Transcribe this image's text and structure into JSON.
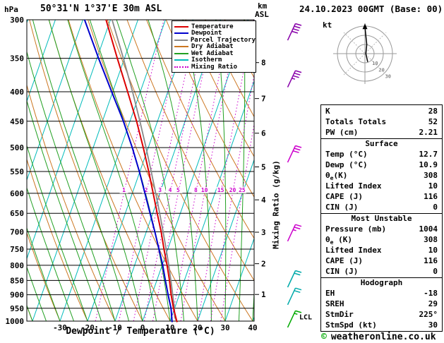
{
  "meta": {
    "hpa_label": "hPa",
    "station_title": "50°31'N 1°37'E 30m ASL",
    "km_label": "km",
    "asl_label": "ASL",
    "datetime": "24.10.2023 00GMT (Base: 00)",
    "copyright_symbol": "©",
    "copyright_text": "weatheronline.co.uk"
  },
  "chart_data": {
    "type": "skewt-log-p-sounding",
    "title": "50°31'N 1°37'E 30m ASL",
    "datetime": "24.10.2023 00GMT (Base: 00)",
    "xlabel": "Dewpoint / Temperature (°C)",
    "pressure_unit": "hPa",
    "x_ticks": [
      -30,
      -20,
      -10,
      0,
      10,
      20,
      30,
      40
    ],
    "pressure_ticks": [
      300,
      350,
      400,
      450,
      500,
      550,
      600,
      650,
      700,
      750,
      800,
      850,
      900,
      950,
      1000
    ],
    "km_axis": {
      "unit": "km ASL",
      "ticks": [
        1,
        2,
        3,
        4,
        5,
        6,
        7,
        8
      ],
      "tick_pressures": [
        899,
        795,
        701,
        616,
        540,
        472,
        411,
        356
      ],
      "lcl_label": "LCL",
      "lcl_pressure": 985
    },
    "mixing_ratio_axis_label": "Mixing Ratio (g/kg)",
    "mixing_ratio_lines": [
      1,
      2,
      3,
      4,
      5,
      8,
      10,
      15,
      20,
      25
    ],
    "grid": {
      "isotherms": {
        "min": -90,
        "max": 40,
        "step": 10
      },
      "dry_adiabats": {
        "min": -40,
        "max": 140,
        "step": 10
      },
      "wet_adiabats": {
        "min": -40,
        "max": 40,
        "step": 5
      }
    },
    "colors": {
      "temperature": "#dd0000",
      "dewpoint": "#0000cc",
      "parcel": "#888888",
      "dry_adiabat": "#cc7722",
      "wet_adiabat": "#22a022",
      "isotherm": "#00bbbb",
      "mixing_ratio": "#cc00cc",
      "grid": "#000000"
    },
    "legend": [
      {
        "label": "Temperature",
        "color": "#dd0000",
        "style": "solid"
      },
      {
        "label": "Dewpoint",
        "color": "#0000cc",
        "style": "solid"
      },
      {
        "label": "Parcel Trajectory",
        "color": "#888888",
        "style": "solid"
      },
      {
        "label": "Dry Adiabat",
        "color": "#cc7722",
        "style": "solid"
      },
      {
        "label": "Wet Adiabat",
        "color": "#22a022",
        "style": "solid"
      },
      {
        "label": "Isotherm",
        "color": "#00bbbb",
        "style": "solid"
      },
      {
        "label": "Mixing Ratio",
        "color": "#cc00cc",
        "style": "dotted"
      }
    ],
    "profiles": {
      "temperature": [
        [
          1004,
          12.7
        ],
        [
          1000,
          12.4
        ],
        [
          950,
          9.6
        ],
        [
          900,
          7.0
        ],
        [
          850,
          4.6
        ],
        [
          800,
          1.8
        ],
        [
          750,
          -1.4
        ],
        [
          700,
          -4.6
        ],
        [
          650,
          -8.4
        ],
        [
          600,
          -12.4
        ],
        [
          550,
          -16.8
        ],
        [
          500,
          -21.8
        ],
        [
          450,
          -27.6
        ],
        [
          400,
          -34.6
        ],
        [
          350,
          -42.6
        ],
        [
          300,
          -51.6
        ]
      ],
      "dewpoint": [
        [
          1004,
          10.9
        ],
        [
          1000,
          10.7
        ],
        [
          950,
          8.7
        ],
        [
          900,
          5.9
        ],
        [
          850,
          3.1
        ],
        [
          800,
          0.2
        ],
        [
          750,
          -3.2
        ],
        [
          700,
          -6.9
        ],
        [
          650,
          -11.0
        ],
        [
          600,
          -15.4
        ],
        [
          550,
          -20.2
        ],
        [
          500,
          -25.8
        ],
        [
          450,
          -32.4
        ],
        [
          400,
          -40.4
        ],
        [
          350,
          -49.4
        ],
        [
          300,
          -59.4
        ]
      ],
      "parcel": [
        [
          1004,
          12.7
        ],
        [
          985,
          11.2
        ],
        [
          950,
          9.9
        ],
        [
          900,
          7.6
        ],
        [
          850,
          5.1
        ],
        [
          800,
          2.4
        ],
        [
          750,
          -0.6
        ],
        [
          700,
          -3.9
        ],
        [
          650,
          -7.5
        ],
        [
          600,
          -11.5
        ],
        [
          550,
          -15.9
        ],
        [
          500,
          -20.8
        ],
        [
          450,
          -26.4
        ],
        [
          400,
          -32.8
        ],
        [
          350,
          -40.4
        ],
        [
          300,
          -49.4
        ]
      ]
    },
    "wind_barbs": [
      {
        "pressure": 315,
        "speed_kt": 40,
        "color": "#8800aa"
      },
      {
        "pressure": 380,
        "speed_kt": 35,
        "color": "#8800aa"
      },
      {
        "pressure": 513,
        "speed_kt": 30,
        "color": "#cc00cc"
      },
      {
        "pressure": 703,
        "speed_kt": 25,
        "color": "#cc00cc"
      },
      {
        "pressure": 845,
        "speed_kt": 20,
        "color": "#00aaaa"
      },
      {
        "pressure": 906,
        "speed_kt": 20,
        "color": "#00aaaa"
      },
      {
        "pressure": 992,
        "speed_kt": 15,
        "color": "#00aa00"
      }
    ],
    "hodograph": {
      "unit_label": "kt",
      "ring_step_kt": 10,
      "ring_labels": [
        "10",
        "20",
        "30"
      ],
      "trace_kt": [
        [
          3,
          -9
        ],
        [
          1,
          0
        ],
        [
          2,
          10
        ],
        [
          0,
          29
        ]
      ]
    }
  },
  "panel": {
    "top_rows": [
      {
        "label": "K",
        "value": "28"
      },
      {
        "label": "Totals Totals",
        "value": "52"
      },
      {
        "label": "PW (cm)",
        "value": "2.21"
      }
    ],
    "surface_header": "Surface",
    "surface_rows_a": [
      {
        "label": "Temp (°C)",
        "value": "12.7"
      },
      {
        "label": "Dewp (°C)",
        "value": "10.9"
      }
    ],
    "surface_thetae": {
      "theta": "θ",
      "sub": "e",
      "rest": "(K)",
      "value": "308"
    },
    "surface_rows_b": [
      {
        "label": "Lifted Index",
        "value": "10"
      },
      {
        "label": "CAPE (J)",
        "value": "116"
      },
      {
        "label": "CIN (J)",
        "value": "0"
      }
    ],
    "mu_header": "Most Unstable",
    "mu_pressure": {
      "label": "Pressure (mb)",
      "value": "1004"
    },
    "mu_thetae": {
      "theta": "θ",
      "sub": "e",
      "rest": " (K)",
      "value": "308"
    },
    "mu_rows": [
      {
        "label": "Lifted Index",
        "value": "10"
      },
      {
        "label": "CAPE (J)",
        "value": "116"
      },
      {
        "label": "CIN (J)",
        "value": "0"
      }
    ],
    "hodo_header": "Hodograph",
    "hodo_rows": [
      {
        "label": "EH",
        "value": "-18"
      },
      {
        "label": "SREH",
        "value": "29"
      },
      {
        "label": "StmDir",
        "value": "225°"
      },
      {
        "label": "StmSpd (kt)",
        "value": "30"
      }
    ]
  }
}
